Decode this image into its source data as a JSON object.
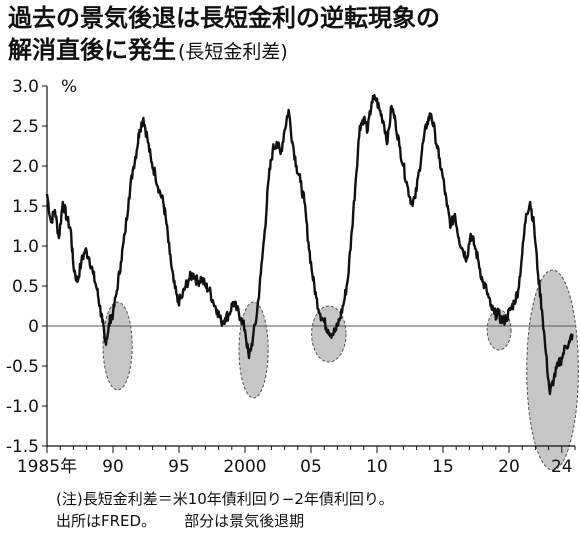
{
  "title": {
    "line1": "過去の景気後退は長短金利の逆転現象の",
    "line2": "解消直後に発生",
    "subtitle": "(長短金利差)"
  },
  "notes": {
    "line1": "(注)長短金利差＝米10年債利回り−2年債利回り。",
    "source": "出所はFRED。",
    "legend_text": "部分は景気後退期"
  },
  "colors": {
    "line": "#111111",
    "highlight": "#bdbdbd",
    "zero_line": "#555555"
  },
  "chart_data": {
    "type": "line",
    "title": "過去の景気後退は長短金利の逆転現象の解消直後に発生(長短金利差)",
    "ylabel": "%",
    "ylim": [
      -1.5,
      3.0
    ],
    "yticks": [
      3.0,
      2.5,
      2.0,
      1.5,
      1.0,
      0.5,
      0,
      -0.5,
      -1.0,
      -1.5
    ],
    "ytick_labels": [
      "3.0",
      "2.5",
      "2.0",
      "1.5",
      "1.0",
      "0.5",
      "0",
      "-0.5",
      "-1.0",
      "-1.5"
    ],
    "xlim": [
      1985,
      2025
    ],
    "xticks": [
      1985,
      1990,
      1995,
      2000,
      2005,
      2010,
      2015,
      2020,
      2024
    ],
    "xtick_labels": [
      "1985年",
      "90",
      "95",
      "2000",
      "05",
      "10",
      "15",
      "20",
      "24"
    ],
    "series": [
      {
        "x": [
          1985.0,
          1985.3,
          1985.6,
          1985.9,
          1986.2,
          1986.5,
          1986.8,
          1987.0,
          1987.3,
          1987.6,
          1987.9,
          1988.2,
          1988.5,
          1988.8,
          1989.0,
          1989.2,
          1989.4,
          1989.6,
          1989.8,
          1990.0,
          1990.3,
          1990.6,
          1990.9,
          1991.2,
          1991.5,
          1991.8,
          1992.0,
          1992.3,
          1992.6,
          1992.9,
          1993.2,
          1993.5,
          1993.8,
          1994.0,
          1994.3,
          1994.6,
          1994.9,
          1995.2,
          1995.5,
          1995.8,
          1996.1,
          1996.4,
          1996.7,
          1997.0,
          1997.3,
          1997.6,
          1997.9,
          1998.2,
          1998.5,
          1998.8,
          1999.1,
          1999.4,
          1999.7,
          2000.0,
          2000.3,
          2000.6,
          2000.9,
          2001.2,
          2001.5,
          2001.8,
          2002.1,
          2002.4,
          2002.7,
          2003.0,
          2003.3,
          2003.6,
          2003.9,
          2004.2,
          2004.5,
          2004.8,
          2005.1,
          2005.4,
          2005.7,
          2006.0,
          2006.3,
          2006.6,
          2006.9,
          2007.2,
          2007.5,
          2007.8,
          2008.1,
          2008.4,
          2008.7,
          2009.0,
          2009.3,
          2009.6,
          2009.9,
          2010.2,
          2010.5,
          2010.8,
          2011.1,
          2011.4,
          2011.7,
          2012.0,
          2012.3,
          2012.6,
          2012.9,
          2013.2,
          2013.5,
          2013.8,
          2014.1,
          2014.4,
          2014.7,
          2015.0,
          2015.3,
          2015.6,
          2015.9,
          2016.2,
          2016.5,
          2016.8,
          2017.1,
          2017.4,
          2017.7,
          2018.0,
          2018.3,
          2018.6,
          2018.9,
          2019.2,
          2019.5,
          2019.8,
          2020.1,
          2020.4,
          2020.7,
          2021.0,
          2021.3,
          2021.6,
          2021.9,
          2022.2,
          2022.5,
          2022.8,
          2023.1,
          2023.4,
          2023.7,
          2024.0,
          2024.3,
          2024.6,
          2024.8
        ],
        "values": [
          1.65,
          1.3,
          1.45,
          1.1,
          1.55,
          1.35,
          1.2,
          0.75,
          0.55,
          0.8,
          0.95,
          0.85,
          0.65,
          0.45,
          0.25,
          0.05,
          -0.2,
          -0.1,
          0.1,
          0.15,
          0.45,
          0.8,
          1.15,
          1.6,
          1.95,
          2.2,
          2.45,
          2.6,
          2.35,
          2.05,
          1.9,
          1.7,
          1.55,
          1.35,
          0.9,
          0.55,
          0.3,
          0.35,
          0.5,
          0.6,
          0.65,
          0.55,
          0.6,
          0.5,
          0.45,
          0.3,
          0.2,
          0.05,
          0.1,
          0.15,
          0.3,
          0.2,
          0.1,
          -0.05,
          -0.4,
          -0.15,
          0.15,
          0.65,
          1.2,
          1.85,
          2.2,
          2.3,
          2.15,
          2.45,
          2.7,
          2.3,
          2.0,
          1.8,
          1.55,
          1.05,
          0.65,
          0.35,
          0.15,
          0.05,
          -0.05,
          -0.1,
          -0.05,
          0.1,
          0.3,
          0.6,
          1.2,
          1.85,
          2.5,
          2.6,
          2.45,
          2.8,
          2.85,
          2.7,
          2.55,
          2.3,
          2.75,
          2.55,
          2.25,
          2.0,
          1.75,
          1.55,
          1.6,
          1.95,
          2.3,
          2.55,
          2.65,
          2.4,
          2.1,
          1.85,
          1.5,
          1.25,
          1.4,
          1.1,
          0.95,
          0.85,
          1.15,
          1.0,
          0.8,
          0.55,
          0.45,
          0.25,
          0.15,
          0.15,
          0.05,
          0.1,
          0.2,
          0.3,
          0.45,
          0.9,
          1.4,
          1.55,
          1.25,
          0.65,
          0.2,
          -0.35,
          -0.85,
          -0.65,
          -0.5,
          -0.4,
          -0.25,
          -0.2,
          -0.1
        ]
      }
    ],
    "recessions": [
      [
        1989.7,
        1991.0
      ],
      [
        2000.0,
        2001.3
      ],
      [
        2005.5,
        2007.2
      ],
      [
        2018.8,
        2019.7
      ],
      [
        2021.8,
        2024.8
      ]
    ],
    "recession_vcenter": [
      -0.25,
      -0.3,
      -0.1,
      -0.05,
      -0.55
    ],
    "recession_vspan": [
      0.55,
      0.6,
      0.35,
      0.25,
      1.25
    ]
  }
}
